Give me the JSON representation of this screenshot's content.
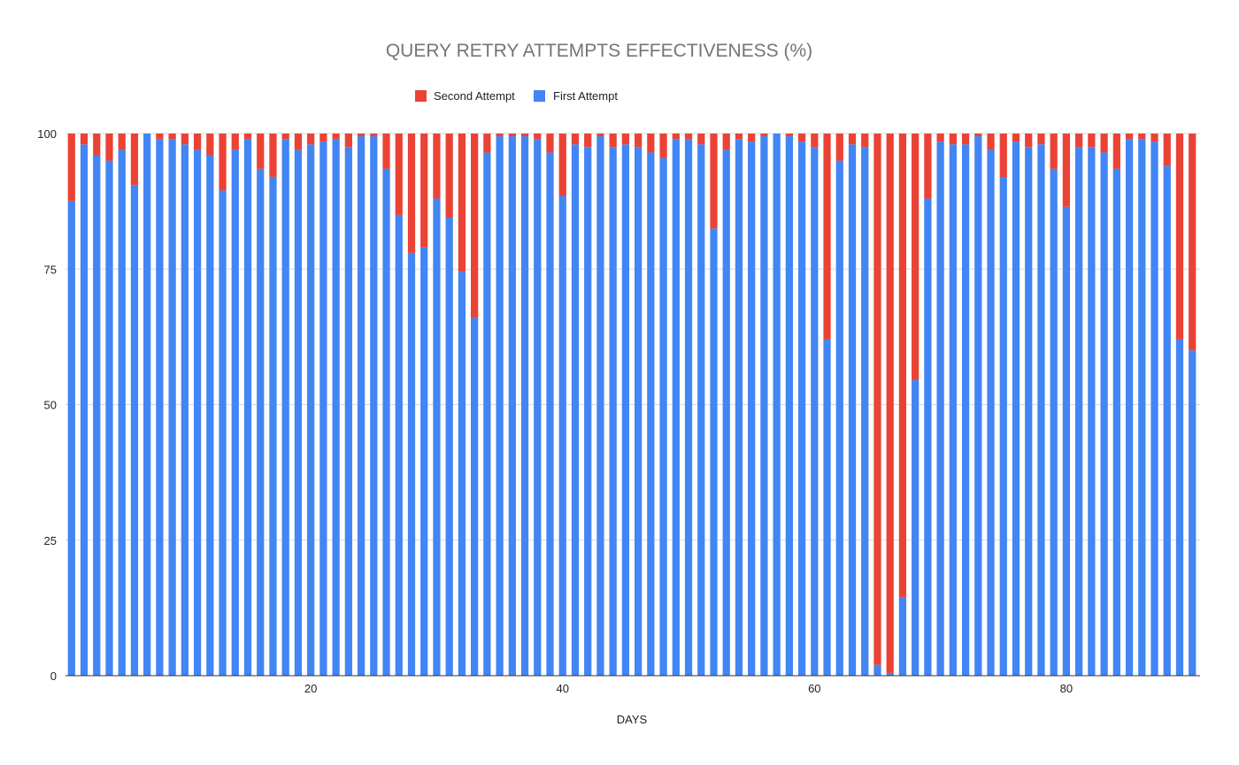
{
  "chart_data": {
    "type": "bar",
    "stacked": true,
    "title": "QUERY RETRY ATTEMPTS EFFECTIVENESS (%)",
    "xlabel": "DAYS",
    "ylabel": "",
    "ylim": [
      0,
      100
    ],
    "yticks": [
      "0",
      "25",
      "50",
      "75",
      "100"
    ],
    "xticks": [
      "20",
      "40",
      "60",
      "80"
    ],
    "xlim": [
      1,
      90
    ],
    "grid": true,
    "legend_position": "top",
    "x": [
      1,
      2,
      3,
      4,
      5,
      6,
      7,
      8,
      9,
      10,
      11,
      12,
      13,
      14,
      15,
      16,
      17,
      18,
      19,
      20,
      21,
      22,
      23,
      24,
      25,
      26,
      27,
      28,
      29,
      30,
      31,
      32,
      33,
      34,
      35,
      36,
      37,
      38,
      39,
      40,
      41,
      42,
      43,
      44,
      45,
      46,
      47,
      48,
      49,
      50,
      51,
      52,
      53,
      54,
      55,
      56,
      57,
      58,
      59,
      60,
      61,
      62,
      63,
      64,
      65,
      66,
      67,
      68,
      69,
      70,
      71,
      72,
      73,
      74,
      75,
      76,
      77,
      78,
      79,
      80,
      81,
      82,
      83,
      84,
      85,
      86,
      87,
      88,
      89,
      90
    ],
    "series": [
      {
        "name": "First Attempt",
        "color": "#4285f4",
        "values": [
          87.5,
          98,
          96,
          95,
          97,
          90.5,
          100,
          99,
          99,
          98,
          97,
          96,
          89.5,
          97,
          99,
          93.5,
          92,
          99,
          97,
          98,
          98.5,
          99,
          97.5,
          99.5,
          99.5,
          93.5,
          85,
          78,
          79,
          88,
          84.5,
          74.5,
          66,
          96.5,
          99.5,
          99.5,
          99.5,
          99,
          96.5,
          88.5,
          98,
          97.5,
          99.5,
          97.5,
          98,
          97.5,
          96.5,
          95.5,
          99,
          99,
          98,
          82.5,
          97,
          99,
          98.5,
          99.5,
          100,
          99.5,
          98.5,
          97.5,
          62,
          95,
          98,
          97.5,
          2,
          0.5,
          14.5,
          54.5,
          88,
          98.5,
          98,
          98,
          99.5,
          97,
          92,
          98.5,
          97.5,
          98,
          93.5,
          86.5,
          97.5,
          97.5,
          96.5,
          93.5,
          99,
          99,
          98.5,
          94,
          62,
          60
        ]
      },
      {
        "name": "Second Attempt",
        "color": "#ea4335",
        "values": [
          12.5,
          2,
          4,
          5,
          3,
          9.5,
          0,
          1,
          1,
          2,
          3,
          4,
          10.5,
          3,
          1,
          6.5,
          8,
          1,
          3,
          2,
          1.5,
          1,
          2.5,
          0.5,
          0.5,
          6.5,
          15,
          22,
          21,
          12,
          15.5,
          25.5,
          34,
          3.5,
          0.5,
          0.5,
          0.5,
          1,
          3.5,
          11.5,
          2,
          2.5,
          0.5,
          2.5,
          2,
          2.5,
          3.5,
          4.5,
          1,
          1,
          2,
          17.5,
          3,
          1,
          1.5,
          0.5,
          0,
          0.5,
          1.5,
          2.5,
          38,
          5,
          2,
          2.5,
          98,
          99.5,
          85.5,
          45.5,
          12,
          1.5,
          2,
          2,
          0.5,
          3,
          8,
          1.5,
          2.5,
          2,
          6.5,
          13.5,
          2.5,
          2.5,
          3.5,
          6.5,
          1,
          1,
          1.5,
          6,
          38,
          40
        ]
      }
    ]
  }
}
